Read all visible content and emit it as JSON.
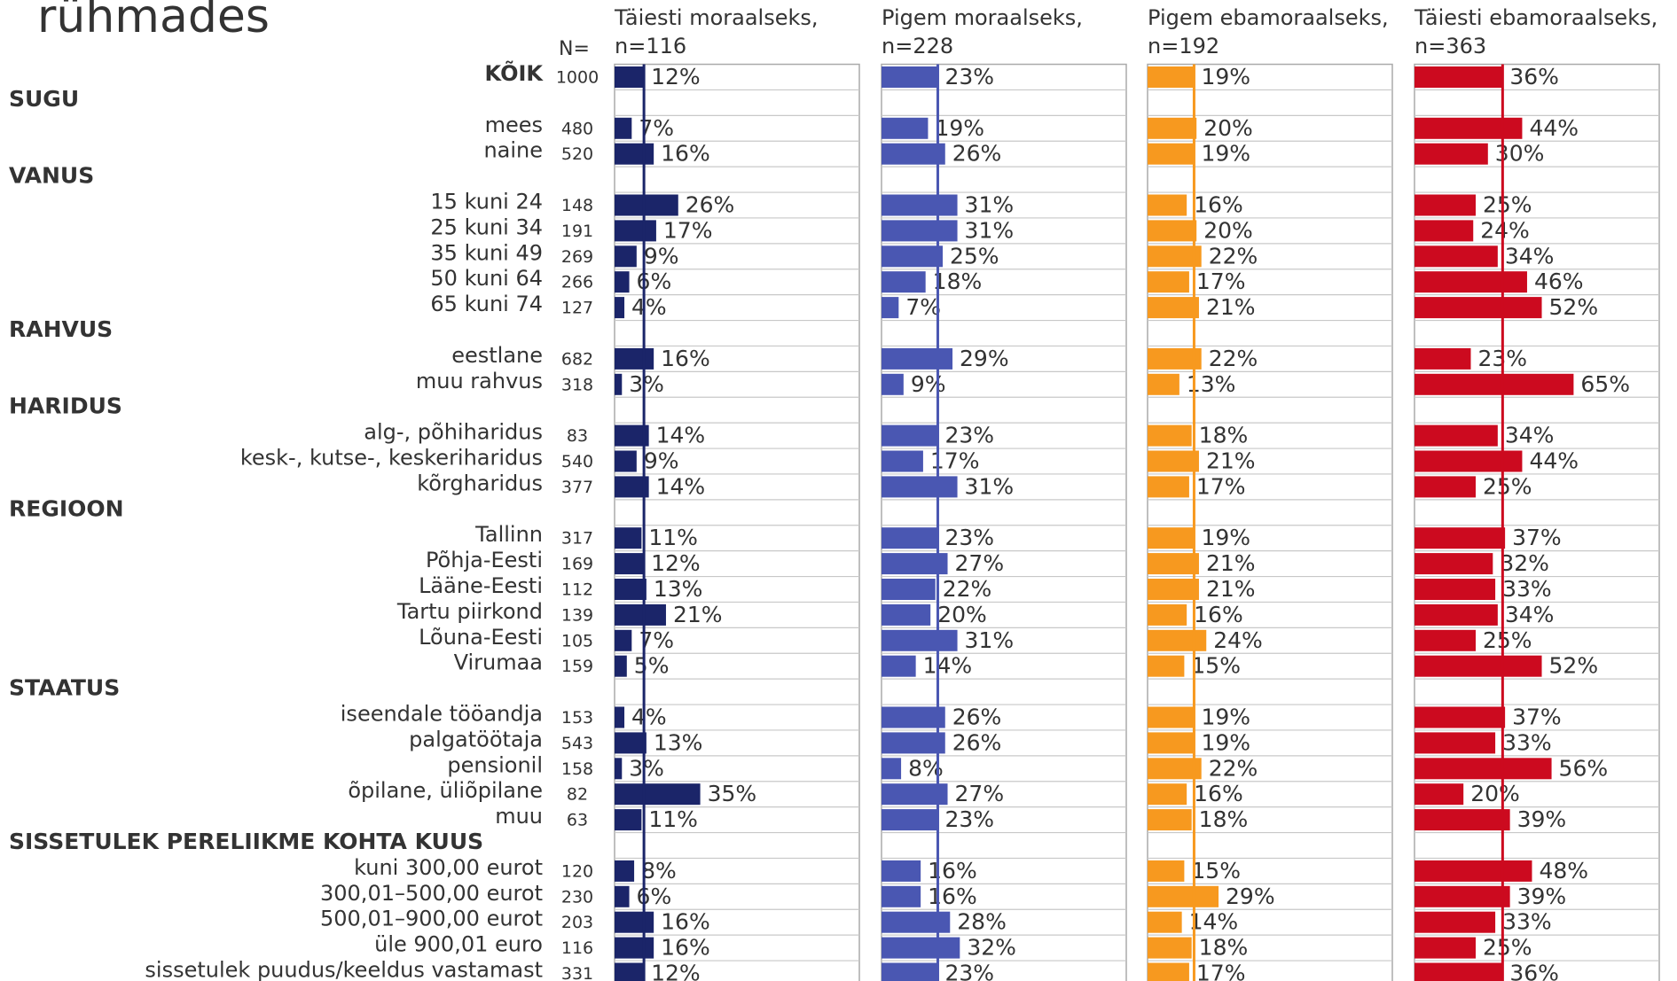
{
  "chart_data": {
    "type": "bar",
    "title": "rühmades",
    "n_label": "N=",
    "categories": [
      "KÕIK",
      "SUGU",
      "mees",
      "naine",
      "VANUS",
      "15 kuni 24",
      "25 kuni 34",
      "35 kuni 49",
      "50 kuni 64",
      "65 kuni 74",
      "RAHVUS",
      "eestlane",
      "muu rahvus",
      "HARIDUS",
      "alg-, põhiharidus",
      "kesk-, kutse-, keskeriharidus",
      "kõrgharidus",
      "REGIOON",
      "Tallinn",
      "Põhja-Eesti",
      "Lääne-Eesti",
      "Tartu piirkond",
      "Lõuna-Eesti",
      "Virumaa",
      "STAATUS",
      "iseendale tööandja",
      "palgatöötaja",
      "pensionil",
      "õpilane, üliõpilane",
      "muu",
      "SISSETULEK PERELIIKME KOHTA KUUS",
      "kuni 300,00 eurot",
      "300,01–500,00 eurot",
      "500,01–900,00 eurot",
      "üle 900,01 euro",
      "sissetulek puudus/keeldus vastamast"
    ],
    "sample_sizes": [
      1000,
      null,
      480,
      520,
      null,
      148,
      191,
      269,
      266,
      127,
      null,
      682,
      318,
      null,
      83,
      540,
      377,
      null,
      317,
      169,
      112,
      139,
      105,
      159,
      null,
      153,
      543,
      158,
      82,
      63,
      null,
      120,
      230,
      203,
      116,
      331
    ],
    "xlim": [
      0,
      100
    ],
    "series": [
      {
        "name": "Täiesti moraalseks,\nn=116",
        "color": "#1b2569",
        "values": [
          12,
          null,
          7,
          16,
          null,
          26,
          17,
          9,
          6,
          4,
          null,
          16,
          3,
          null,
          14,
          9,
          14,
          null,
          11,
          12,
          13,
          21,
          7,
          5,
          null,
          4,
          13,
          3,
          35,
          11,
          null,
          8,
          6,
          16,
          16,
          12
        ],
        "value_labels": [
          "12%",
          null,
          "7%",
          "16%",
          null,
          "26%",
          "17%",
          "9%",
          "6%",
          "4%",
          null,
          "16%",
          "3%",
          null,
          "14%",
          "9%",
          "14%",
          null,
          "11%",
          "12%",
          "13%",
          "21%",
          "7%",
          "5%",
          null,
          "4%",
          "13%",
          "3%",
          "35%",
          "11%",
          null,
          "8%",
          "6%",
          "16%",
          "16%",
          "12%"
        ]
      },
      {
        "name": "Pigem moraalseks,\nn=228",
        "color": "#4a57b2",
        "values": [
          23,
          null,
          19,
          26,
          null,
          31,
          31,
          25,
          18,
          7,
          null,
          29,
          9,
          null,
          23,
          17,
          31,
          null,
          23,
          27,
          22,
          20,
          31,
          14,
          null,
          26,
          26,
          8,
          27,
          23,
          null,
          16,
          16,
          28,
          32,
          23
        ],
        "value_labels": [
          "23%",
          null,
          "19%",
          "26%",
          null,
          "31%",
          "31%",
          "25%",
          "18%",
          "7%",
          null,
          "29%",
          "9%",
          null,
          "23%",
          "17%",
          "31%",
          null,
          "23%",
          "27%",
          "22%",
          "20%",
          "31%",
          "14%",
          null,
          "26%",
          "26%",
          "8%",
          "27%",
          "23%",
          null,
          "16%",
          "16%",
          "28%",
          "32%",
          "23%"
        ]
      },
      {
        "name": "Pigem ebamoraalseks,\nn=192",
        "color": "#f7991f",
        "values": [
          19,
          null,
          20,
          19,
          null,
          16,
          20,
          22,
          17,
          21,
          null,
          22,
          13,
          null,
          18,
          21,
          17,
          null,
          19,
          21,
          21,
          16,
          24,
          15,
          null,
          19,
          19,
          22,
          16,
          18,
          null,
          15,
          29,
          14,
          18,
          17
        ],
        "value_labels": [
          "19%",
          null,
          "20%",
          "19%",
          null,
          "16%",
          "20%",
          "22%",
          "17%",
          "21%",
          null,
          "22%",
          "13%",
          null,
          "18%",
          "21%",
          "17%",
          null,
          "19%",
          "21%",
          "21%",
          "16%",
          "24%",
          "15%",
          null,
          "19%",
          "19%",
          "22%",
          "16%",
          "18%",
          null,
          "15%",
          "29%",
          "14%",
          "18%",
          "17%"
        ]
      },
      {
        "name": "Täiesti ebamoraalseks,\nn=363",
        "color": "#cc0a1f",
        "values": [
          36,
          null,
          44,
          30,
          null,
          25,
          24,
          34,
          46,
          52,
          null,
          23,
          65,
          null,
          34,
          44,
          25,
          null,
          37,
          32,
          33,
          34,
          25,
          52,
          null,
          37,
          33,
          56,
          20,
          39,
          null,
          48,
          39,
          33,
          25,
          36
        ],
        "value_labels": [
          "36%",
          null,
          "44%",
          "30%",
          null,
          "25%",
          "24%",
          "34%",
          "46%",
          "52%",
          null,
          "23%",
          "65%",
          null,
          "34%",
          "44%",
          "25%",
          null,
          "37%",
          "32%",
          "33%",
          "34%",
          "25%",
          "52%",
          null,
          "37%",
          "33%",
          "56%",
          "20%",
          "39%",
          null,
          "48%",
          "39%",
          "33%",
          "25%",
          "36%"
        ]
      }
    ]
  }
}
